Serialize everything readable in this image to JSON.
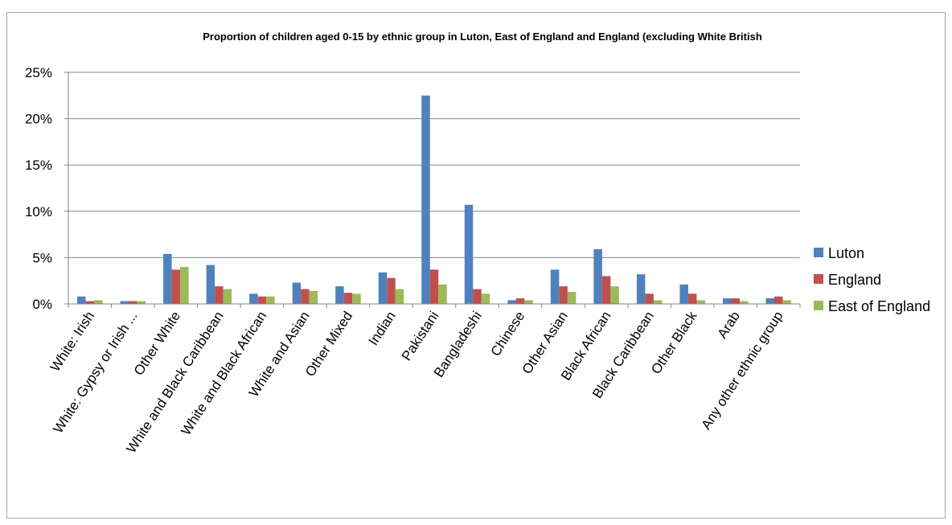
{
  "chart_data": {
    "type": "bar",
    "title": "Proportion of children aged 0-15 by ethnic group in Luton, East of England and England (excluding White British",
    "xlabel": "",
    "ylabel": "",
    "ylim": [
      0,
      0.25
    ],
    "yticks": [
      0,
      0.05,
      0.1,
      0.15,
      0.2,
      0.25
    ],
    "ytick_labels": [
      "0%",
      "5%",
      "10%",
      "15%",
      "20%",
      "25%"
    ],
    "grid": true,
    "legend_position": "right",
    "categories": [
      "White: Irish",
      "White: Gypsy or Irish ...",
      "Other White",
      "White and Black Caribbean",
      "White and Black African",
      "White and Asian",
      "Other Mixed",
      "Indian",
      "Pakistani",
      "Bangladeshi",
      "Chinese",
      "Other Asian",
      "Black African",
      "Black Caribbean",
      "Other Black",
      "Arab",
      "Any other ethnic group"
    ],
    "series": [
      {
        "name": "Luton",
        "color": "#4f81bd",
        "values": [
          0.008,
          0.003,
          0.054,
          0.042,
          0.011,
          0.023,
          0.019,
          0.034,
          0.225,
          0.107,
          0.004,
          0.037,
          0.059,
          0.032,
          0.021,
          0.006,
          0.006
        ]
      },
      {
        "name": "England",
        "color": "#c0504d",
        "values": [
          0.003,
          0.003,
          0.037,
          0.019,
          0.008,
          0.016,
          0.012,
          0.028,
          0.037,
          0.016,
          0.006,
          0.019,
          0.03,
          0.011,
          0.011,
          0.006,
          0.008
        ]
      },
      {
        "name": "East of England",
        "color": "#9bbb59",
        "values": [
          0.004,
          0.003,
          0.04,
          0.016,
          0.008,
          0.014,
          0.011,
          0.016,
          0.021,
          0.011,
          0.004,
          0.013,
          0.019,
          0.004,
          0.004,
          0.003,
          0.004
        ]
      }
    ]
  }
}
